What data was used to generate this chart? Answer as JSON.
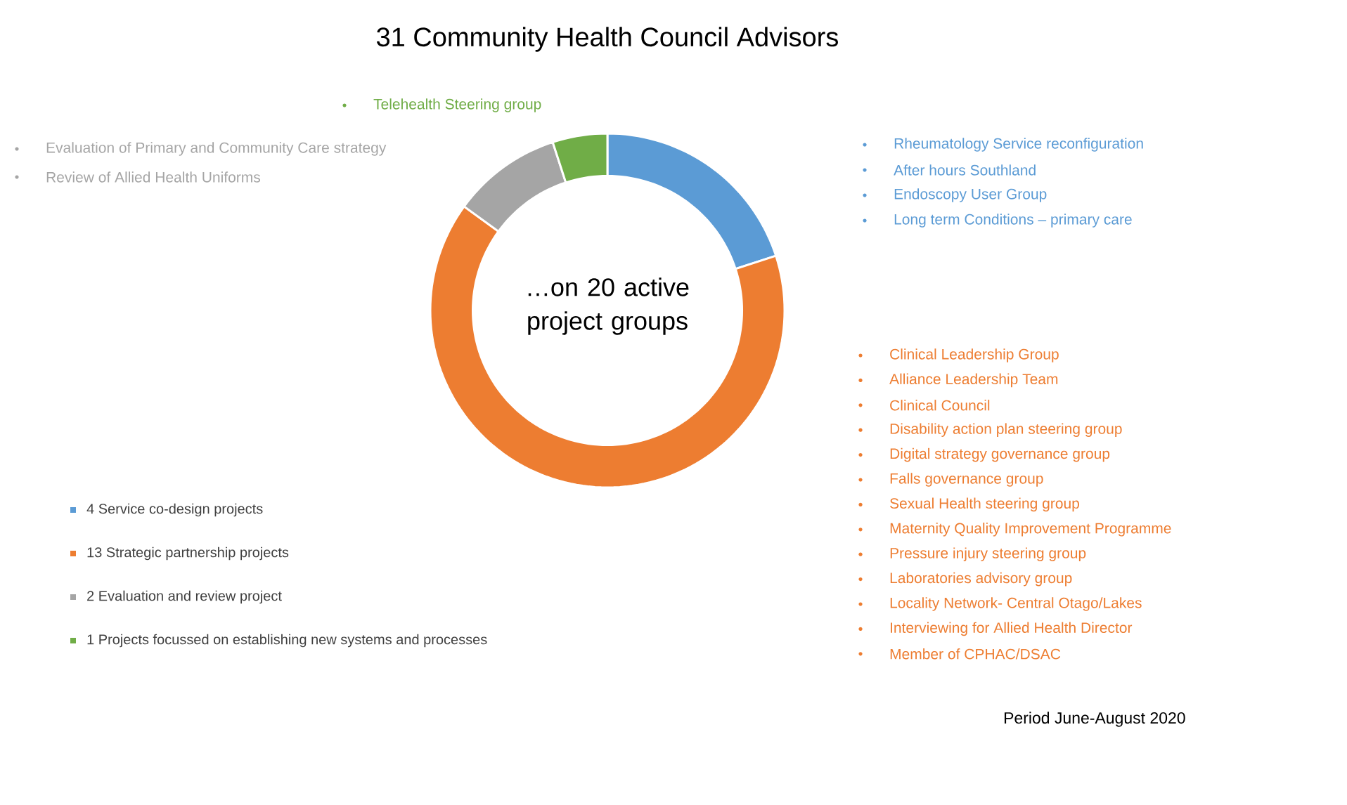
{
  "chart_data": {
    "type": "donut",
    "title": "31 Community Health Council Advisors",
    "categories": [
      "4 Service co-design projects",
      "13 Strategic partnership projects",
      "2 Evaluation and review project",
      "1 Projects focussed on establishing new systems and processes"
    ],
    "values": [
      4,
      13,
      2,
      1
    ],
    "colors": [
      "#5b9bd5",
      "#ed7d31",
      "#a5a5a5",
      "#70ad47"
    ],
    "legend": "bottom left",
    "annotations": [
      "…on 20 active project groups",
      "Rheumatology Service reconfiguration",
      "After hours Southland",
      "Endoscopy User Group",
      "Long term Conditions – primary care",
      "Telehealth Steering group",
      "Evaluation of Primary and Community Care strategy",
      "Review of Allied Health Uniforms",
      "Clinical Leadership Group",
      "Alliance Leadership Team",
      "Clinical Council",
      "Disability action plan steering group",
      "Digital strategy governance group",
      "Falls governance group",
      "Sexual Health steering group",
      "Maternity Quality Improvement Programme",
      "Pressure injury steering group",
      "Laboratories advisory group",
      "Locality Network- Central Otago/Lakes",
      "Interviewing for Allied Health Director",
      "Member of CPHAC/DSAC",
      "Period June-August 2020"
    ]
  }
}
